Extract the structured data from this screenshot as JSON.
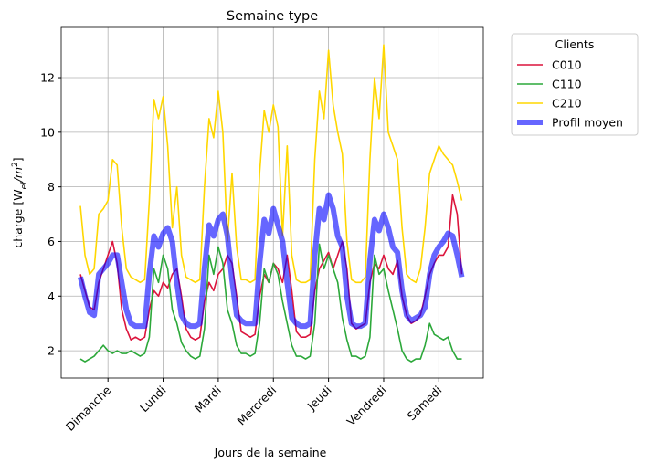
{
  "chart_data": {
    "type": "line",
    "title": "Semaine type",
    "xlabel": "Jours de la semaine",
    "ylabel_parts": [
      "charge [W",
      "el",
      "/m",
      "2",
      "]"
    ],
    "legend_title": "Clients",
    "legend": "outside-upper-right",
    "grid": true,
    "xlim": [
      -8.35,
      175.35
    ],
    "ylim": [
      1.0,
      13.84
    ],
    "xticks": [
      {
        "value": 12,
        "label": "Dimanche"
      },
      {
        "value": 36,
        "label": "Lundi"
      },
      {
        "value": 60,
        "label": "Mardi"
      },
      {
        "value": 84,
        "label": "Mercredi"
      },
      {
        "value": 108,
        "label": "Jeudi"
      },
      {
        "value": 132,
        "label": "Vendredi"
      },
      {
        "value": 156,
        "label": "Samedi"
      }
    ],
    "yticks": [
      2,
      4,
      6,
      8,
      10,
      12
    ],
    "x": [
      0,
      2,
      4,
      6,
      8,
      10,
      12,
      14,
      16,
      18,
      20,
      22,
      24,
      26,
      28,
      30,
      32,
      34,
      36,
      38,
      40,
      42,
      44,
      46,
      48,
      50,
      52,
      54,
      56,
      58,
      60,
      62,
      64,
      66,
      68,
      70,
      72,
      74,
      76,
      78,
      80,
      82,
      84,
      86,
      88,
      90,
      92,
      94,
      96,
      98,
      100,
      102,
      104,
      106,
      108,
      110,
      112,
      114,
      116,
      118,
      120,
      122,
      124,
      126,
      128,
      130,
      132,
      134,
      136,
      138,
      140,
      142,
      144,
      146,
      148,
      150,
      152,
      154,
      156,
      158,
      160,
      162,
      164,
      166
    ],
    "series": [
      {
        "name": "C010",
        "color": "#dc143c",
        "width": 1.6,
        "opacity": 1,
        "values": [
          4.8,
          4.2,
          3.6,
          3.5,
          4.5,
          5.0,
          5.5,
          6.0,
          5.2,
          3.5,
          2.8,
          2.4,
          2.5,
          2.4,
          2.5,
          3.5,
          4.2,
          4.0,
          4.5,
          4.3,
          4.8,
          5.0,
          4.0,
          2.8,
          2.5,
          2.4,
          2.5,
          3.8,
          4.5,
          4.2,
          4.8,
          5.0,
          5.5,
          5.2,
          4.0,
          2.7,
          2.6,
          2.5,
          2.6,
          4.0,
          4.8,
          4.5,
          5.2,
          5.0,
          4.5,
          5.5,
          4.2,
          2.7,
          2.5,
          2.5,
          2.6,
          4.2,
          5.0,
          5.3,
          5.6,
          5.0,
          5.5,
          6.0,
          5.0,
          3.0,
          2.8,
          2.9,
          3.0,
          4.5,
          5.2,
          5.0,
          5.5,
          5.0,
          4.8,
          5.3,
          4.0,
          3.3,
          3.0,
          3.1,
          3.3,
          4.0,
          4.8,
          5.2,
          5.5,
          5.5,
          5.8,
          7.7,
          7.0,
          4.8
        ]
      },
      {
        "name": "C110",
        "color": "#2ca83a",
        "width": 1.6,
        "opacity": 1,
        "values": [
          1.7,
          1.6,
          1.7,
          1.8,
          2.0,
          2.2,
          2.0,
          1.9,
          2.0,
          1.9,
          1.9,
          2.0,
          1.9,
          1.8,
          1.9,
          2.5,
          5.0,
          4.5,
          5.5,
          5.0,
          3.5,
          3.0,
          2.3,
          2.0,
          1.8,
          1.7,
          1.8,
          2.8,
          5.5,
          4.8,
          5.8,
          5.2,
          3.5,
          3.0,
          2.2,
          1.9,
          1.9,
          1.8,
          1.9,
          3.0,
          5.0,
          4.5,
          5.2,
          4.8,
          3.8,
          3.0,
          2.2,
          1.8,
          1.8,
          1.7,
          1.8,
          3.0,
          5.9,
          5.0,
          5.5,
          5.0,
          4.5,
          3.2,
          2.4,
          1.8,
          1.8,
          1.7,
          1.8,
          2.5,
          5.5,
          4.8,
          5.0,
          4.2,
          3.5,
          2.8,
          2.0,
          1.7,
          1.6,
          1.7,
          1.7,
          2.2,
          3.0,
          2.6,
          2.5,
          2.4,
          2.5,
          2.0,
          1.7,
          1.7
        ]
      },
      {
        "name": "C210",
        "color": "#ffd700",
        "width": 1.6,
        "opacity": 1,
        "values": [
          7.3,
          5.5,
          4.8,
          5.0,
          7.0,
          7.2,
          7.5,
          9.0,
          8.8,
          6.5,
          5.0,
          4.7,
          4.6,
          4.5,
          4.6,
          7.5,
          11.2,
          10.5,
          11.3,
          9.5,
          6.5,
          8.0,
          5.5,
          4.7,
          4.6,
          4.5,
          4.6,
          8.0,
          10.5,
          9.8,
          11.5,
          10.0,
          6.0,
          8.5,
          5.8,
          4.6,
          4.6,
          4.5,
          4.6,
          8.5,
          10.8,
          10.0,
          11.0,
          10.2,
          6.2,
          9.5,
          5.5,
          4.6,
          4.5,
          4.5,
          4.6,
          9.0,
          11.5,
          10.5,
          13.0,
          11.0,
          10.0,
          9.2,
          6.0,
          4.6,
          4.5,
          4.5,
          4.7,
          9.0,
          12.0,
          10.5,
          13.2,
          10.0,
          9.5,
          9.0,
          6.5,
          4.8,
          4.6,
          4.5,
          5.0,
          6.5,
          8.5,
          9.0,
          9.5,
          9.2,
          9.0,
          8.8,
          8.2,
          7.5
        ]
      },
      {
        "name": "Profil moyen",
        "color": "#0000ff",
        "width": 6,
        "opacity": 0.6,
        "values": [
          4.7,
          4.0,
          3.4,
          3.3,
          4.8,
          5.0,
          5.2,
          5.5,
          5.5,
          4.5,
          3.5,
          3.0,
          2.9,
          2.9,
          2.9,
          4.8,
          6.2,
          5.8,
          6.3,
          6.5,
          6.0,
          4.5,
          3.3,
          3.0,
          2.9,
          2.9,
          3.0,
          5.0,
          6.6,
          6.2,
          6.8,
          7.0,
          6.2,
          4.6,
          3.3,
          3.1,
          3.0,
          3.0,
          3.0,
          5.2,
          6.8,
          6.3,
          7.2,
          6.6,
          6.0,
          4.5,
          3.2,
          3.0,
          2.9,
          2.9,
          3.0,
          5.5,
          7.2,
          6.8,
          7.7,
          7.2,
          6.2,
          5.8,
          4.0,
          3.0,
          2.9,
          2.9,
          3.0,
          5.3,
          6.8,
          6.4,
          7.0,
          6.5,
          5.8,
          5.6,
          4.2,
          3.3,
          3.1,
          3.2,
          3.3,
          3.6,
          4.8,
          5.5,
          5.8,
          6.0,
          6.3,
          6.2,
          5.5,
          4.7
        ]
      }
    ]
  }
}
